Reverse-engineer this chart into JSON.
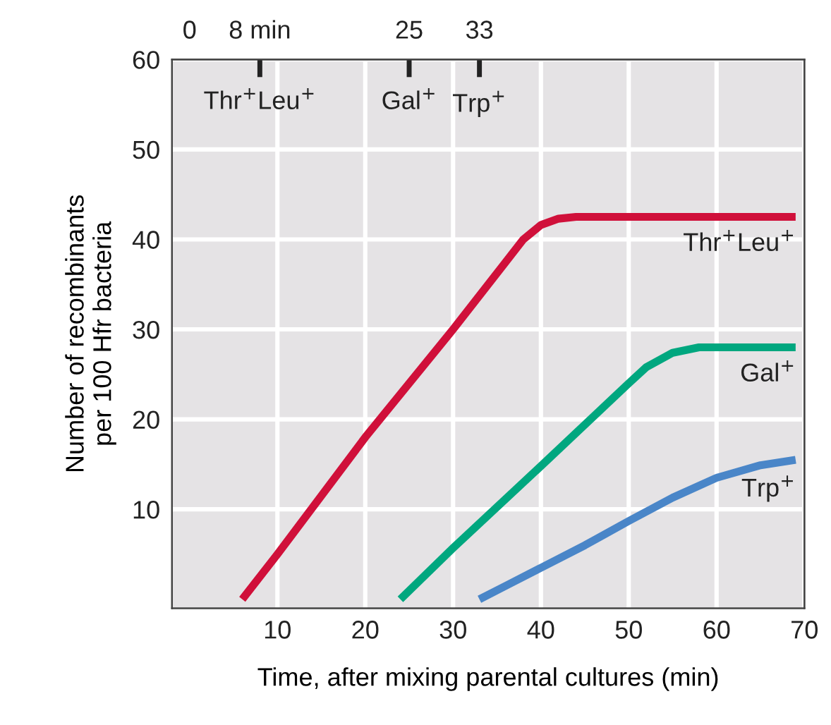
{
  "chart_data": {
    "type": "line",
    "xlabel": "Time, after mixing parental cultures (min)",
    "ylabel": "Number of recombinants\nper 100 Hfr bacteria",
    "xlim": [
      -2,
      70
    ],
    "xticks": [
      10,
      20,
      30,
      40,
      50,
      60,
      70
    ],
    "ylim": [
      -1,
      60
    ],
    "yticks": [
      10,
      20,
      30,
      40,
      50,
      60
    ],
    "x2lim": [
      -2,
      70
    ],
    "x2ticks": [
      0,
      {
        "value": 8,
        "label": "8 min"
      },
      25,
      33
    ],
    "grid": true,
    "legend": false,
    "marker": "none",
    "line_style": "solid",
    "series": [
      {
        "name": "Thr$^{+}$Leu$^{+}$",
        "color": "#d0103a",
        "x": [
          6,
          10,
          20,
          30,
          36,
          38,
          40,
          42,
          44,
          69
        ],
        "values": [
          0,
          5,
          18,
          30,
          37.5,
          40,
          41.6,
          42.3,
          42.5,
          42.5
        ]
      },
      {
        "name": "Gal$^{+}$",
        "color": "#00a77f",
        "x": [
          24,
          30,
          40,
          50,
          52,
          55,
          58,
          69
        ],
        "values": [
          0,
          5.7,
          14.8,
          24,
          25.8,
          27.4,
          28,
          28
        ]
      },
      {
        "name": "Trp$^{+}$",
        "color": "#4a86c8",
        "x": [
          33,
          36,
          40,
          45,
          50,
          55,
          60,
          65,
          69
        ],
        "values": [
          0,
          1.5,
          3.5,
          6,
          8.7,
          11.3,
          13.5,
          14.9,
          15.5
        ]
      }
    ],
    "annotations": [
      "Thr$^{+}$Leu$^{+}$",
      "Gal$^{+}$",
      "Trp$^{+}$"
    ]
  }
}
